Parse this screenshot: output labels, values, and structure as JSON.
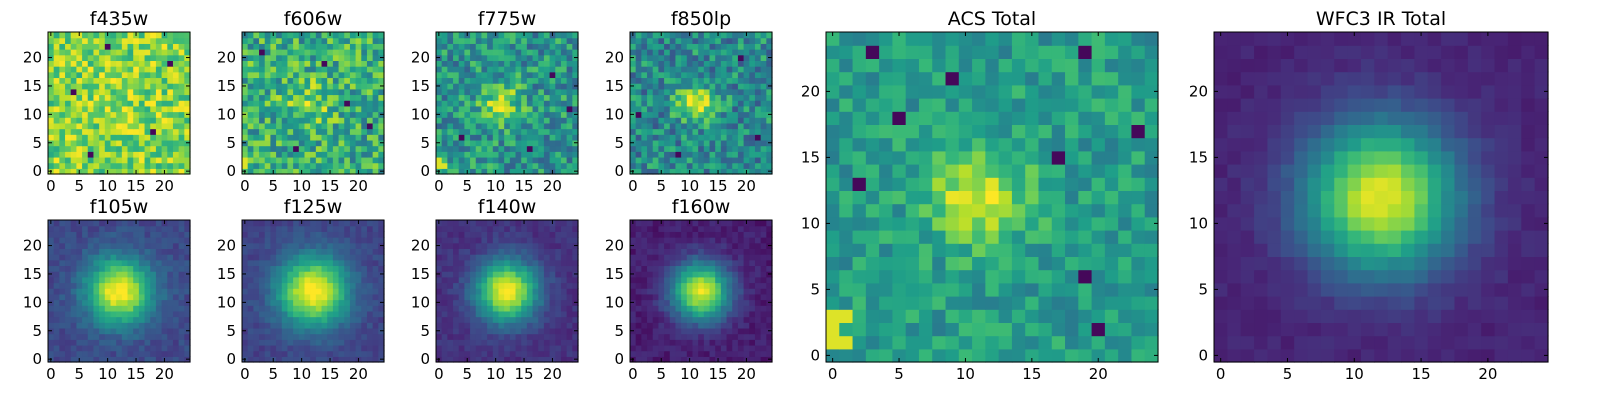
{
  "figure": {
    "colormap": "viridis",
    "colormap_stops": [
      "#440154",
      "#482878",
      "#3e4a89",
      "#31688e",
      "#26828e",
      "#1f9e89",
      "#35b779",
      "#6ece58",
      "#b5de2b",
      "#fde725"
    ],
    "pixel_grid": 25
  },
  "chart_data": [
    {
      "type": "heatmap",
      "id": "f435w",
      "title": "f435w",
      "xlim": [
        0,
        24
      ],
      "ylim": [
        0,
        24
      ],
      "xticks": [
        0,
        5,
        10,
        15,
        20
      ],
      "yticks": [
        0,
        5,
        10,
        15,
        20
      ],
      "blob": {
        "x": 12,
        "y": 12,
        "sigma": 4.0,
        "amplitude": 0.05
      },
      "background": 0.8,
      "noise": 0.2,
      "hot_pixels": [],
      "cold_pixels": [
        {
          "x": 10,
          "y": 22
        },
        {
          "x": 4,
          "y": 14
        },
        {
          "x": 18,
          "y": 7
        },
        {
          "x": 21,
          "y": 19
        },
        {
          "x": 7,
          "y": 3
        }
      ]
    },
    {
      "type": "heatmap",
      "id": "f606w",
      "title": "f606w",
      "xlim": [
        0,
        24
      ],
      "ylim": [
        0,
        24
      ],
      "xticks": [
        0,
        5,
        10,
        15,
        20
      ],
      "yticks": [
        0,
        5,
        10,
        15,
        20
      ],
      "blob": {
        "x": 11,
        "y": 12,
        "sigma": 3.0,
        "amplitude": 0.2
      },
      "background": 0.62,
      "noise": 0.24,
      "hot_pixels": [
        {
          "x": 0,
          "y": 1
        },
        {
          "x": 0,
          "y": 2
        }
      ],
      "cold_pixels": [
        {
          "x": 18,
          "y": 12
        },
        {
          "x": 3,
          "y": 21
        },
        {
          "x": 22,
          "y": 8
        },
        {
          "x": 9,
          "y": 4
        },
        {
          "x": 14,
          "y": 19
        }
      ]
    },
    {
      "type": "heatmap",
      "id": "f775w",
      "title": "f775w",
      "xlim": [
        0,
        24
      ],
      "ylim": [
        0,
        24
      ],
      "xticks": [
        0,
        5,
        10,
        15,
        20
      ],
      "yticks": [
        0,
        5,
        10,
        15,
        20
      ],
      "blob": {
        "x": 11,
        "y": 12,
        "sigma": 2.5,
        "amplitude": 0.36
      },
      "background": 0.52,
      "noise": 0.22,
      "hot_pixels": [
        {
          "x": 0,
          "y": 1
        },
        {
          "x": 1,
          "y": 1
        },
        {
          "x": 0,
          "y": 2
        }
      ],
      "cold_pixels": [
        {
          "x": 20,
          "y": 17
        },
        {
          "x": 4,
          "y": 6
        },
        {
          "x": 16,
          "y": 4
        },
        {
          "x": 23,
          "y": 11
        }
      ]
    },
    {
      "type": "heatmap",
      "id": "f850lp",
      "title": "f850lp",
      "xlim": [
        0,
        24
      ],
      "ylim": [
        0,
        24
      ],
      "xticks": [
        0,
        5,
        10,
        15,
        20
      ],
      "yticks": [
        0,
        5,
        10,
        15,
        20
      ],
      "blob": {
        "x": 11,
        "y": 12,
        "sigma": 2.3,
        "amplitude": 0.45
      },
      "background": 0.48,
      "noise": 0.22,
      "hot_pixels": [],
      "cold_pixels": [
        {
          "x": 1,
          "y": 10
        },
        {
          "x": 8,
          "y": 3
        },
        {
          "x": 19,
          "y": 20
        },
        {
          "x": 22,
          "y": 6
        }
      ]
    },
    {
      "type": "heatmap",
      "id": "f105w",
      "title": "f105w",
      "xlim": [
        0,
        24
      ],
      "ylim": [
        0,
        24
      ],
      "xticks": [
        0,
        5,
        10,
        15,
        20
      ],
      "yticks": [
        0,
        5,
        10,
        15,
        20
      ],
      "blob": {
        "x": 12,
        "y": 12,
        "sigma": 4.0,
        "amplitude": 0.8
      },
      "background": 0.22,
      "noise": 0.06,
      "hot_pixels": [],
      "cold_pixels": []
    },
    {
      "type": "heatmap",
      "id": "f125w",
      "title": "f125w",
      "xlim": [
        0,
        24
      ],
      "ylim": [
        0,
        24
      ],
      "xticks": [
        0,
        5,
        10,
        15,
        20
      ],
      "yticks": [
        0,
        5,
        10,
        15,
        20
      ],
      "blob": {
        "x": 12,
        "y": 12,
        "sigma": 4.3,
        "amplitude": 0.82
      },
      "background": 0.2,
      "noise": 0.05,
      "hot_pixels": [],
      "cold_pixels": []
    },
    {
      "type": "heatmap",
      "id": "f140w",
      "title": "f140w",
      "xlim": [
        0,
        24
      ],
      "ylim": [
        0,
        24
      ],
      "xticks": [
        0,
        5,
        10,
        15,
        20
      ],
      "yticks": [
        0,
        5,
        10,
        15,
        20
      ],
      "blob": {
        "x": 12,
        "y": 12,
        "sigma": 3.8,
        "amplitude": 0.85
      },
      "background": 0.14,
      "noise": 0.05,
      "hot_pixels": [],
      "cold_pixels": []
    },
    {
      "type": "heatmap",
      "id": "f160w",
      "title": "f160w",
      "xlim": [
        0,
        24
      ],
      "ylim": [
        0,
        24
      ],
      "xticks": [
        0,
        5,
        10,
        15,
        20
      ],
      "yticks": [
        0,
        5,
        10,
        15,
        20
      ],
      "blob": {
        "x": 12,
        "y": 12,
        "sigma": 3.6,
        "amplitude": 0.88
      },
      "background": 0.08,
      "noise": 0.05,
      "hot_pixels": [],
      "cold_pixels": []
    },
    {
      "type": "heatmap",
      "id": "acs-total",
      "title": "ACS Total",
      "xlim": [
        0,
        24
      ],
      "ylim": [
        0,
        24
      ],
      "xticks": [
        0,
        5,
        10,
        15,
        20
      ],
      "yticks": [
        0,
        5,
        10,
        15,
        20
      ],
      "blob": {
        "x": 11,
        "y": 12,
        "sigma": 2.6,
        "amplitude": 0.4
      },
      "background": 0.55,
      "noise": 0.14,
      "hot_pixels": [
        {
          "x": 0,
          "y": 1
        },
        {
          "x": 1,
          "y": 1
        },
        {
          "x": 0,
          "y": 2
        },
        {
          "x": 0,
          "y": 3
        },
        {
          "x": 1,
          "y": 3
        }
      ],
      "cold_pixels": [
        {
          "x": 19,
          "y": 23
        },
        {
          "x": 9,
          "y": 21
        },
        {
          "x": 5,
          "y": 18
        },
        {
          "x": 17,
          "y": 15
        },
        {
          "x": 23,
          "y": 17
        },
        {
          "x": 19,
          "y": 6
        },
        {
          "x": 2,
          "y": 13
        },
        {
          "x": 20,
          "y": 2
        },
        {
          "x": 3,
          "y": 23
        }
      ]
    },
    {
      "type": "heatmap",
      "id": "wfc3-ir-total",
      "title": "WFC3 IR Total",
      "xlim": [
        0,
        24
      ],
      "ylim": [
        0,
        24
      ],
      "xticks": [
        0,
        5,
        10,
        15,
        20
      ],
      "yticks": [
        0,
        5,
        10,
        15,
        20
      ],
      "blob": {
        "x": 12,
        "y": 12,
        "sigma": 4.0,
        "amplitude": 0.86
      },
      "background": 0.1,
      "noise": 0.03,
      "hot_pixels": [],
      "cold_pixels": []
    }
  ]
}
